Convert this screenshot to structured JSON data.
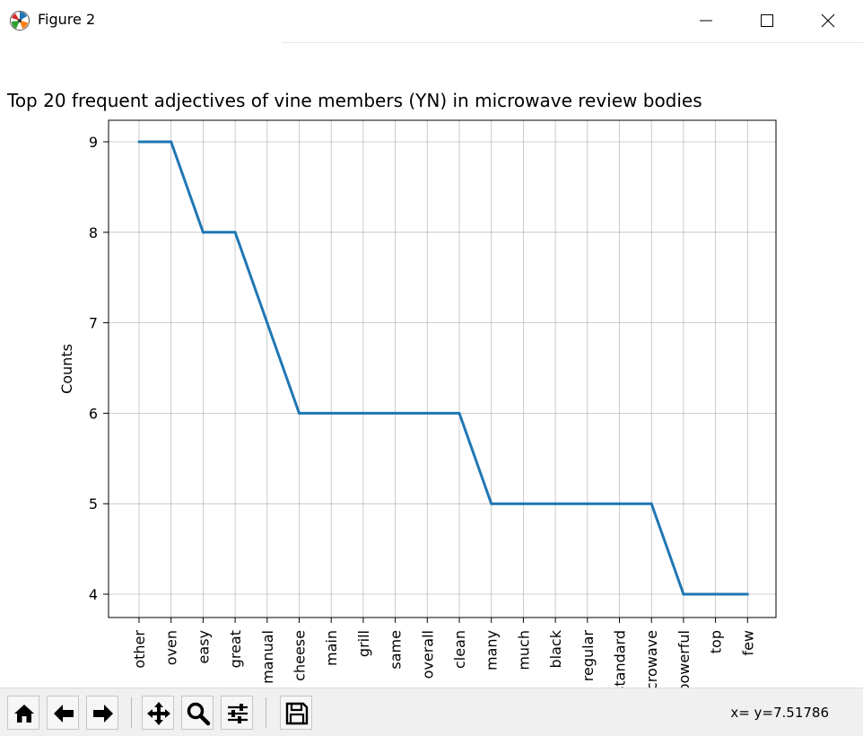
{
  "window": {
    "title": "Figure 2",
    "icons": {
      "app": "matplotlib-icon",
      "minimize": "minimize-icon",
      "maximize": "maximize-icon",
      "close": "close-icon"
    }
  },
  "chart_data": {
    "type": "line",
    "title": "Top 20 frequent adjectives of vine members (YN) in microwave review bodies",
    "xlabel": "",
    "ylabel": "Counts",
    "categories": [
      "other",
      "oven",
      "easy",
      "great",
      "manual",
      "cheese",
      "main",
      "grill",
      "same",
      "overall",
      "clean",
      "many",
      "much",
      "black",
      "regular",
      "standard",
      "microwave",
      "powerful",
      "top",
      "few"
    ],
    "values": [
      9,
      9,
      8,
      8,
      7,
      6,
      6,
      6,
      6,
      6,
      6,
      5,
      5,
      5,
      5,
      5,
      5,
      4,
      4,
      4
    ],
    "yticks": [
      4,
      5,
      6,
      7,
      8,
      9
    ],
    "grid": true,
    "line_color": "#1f77b4"
  },
  "toolbar": {
    "buttons": [
      {
        "name": "home-button",
        "icon": "home-icon"
      },
      {
        "name": "back-button",
        "icon": "arrow-left-icon"
      },
      {
        "name": "forward-button",
        "icon": "arrow-right-icon"
      },
      {
        "name": "pan-button",
        "icon": "move-icon"
      },
      {
        "name": "zoom-button",
        "icon": "magnifier-icon"
      },
      {
        "name": "configure-subplots-button",
        "icon": "sliders-icon"
      },
      {
        "name": "save-button",
        "icon": "floppy-disk-icon"
      }
    ],
    "coordinates": "x= y=7.51786"
  }
}
